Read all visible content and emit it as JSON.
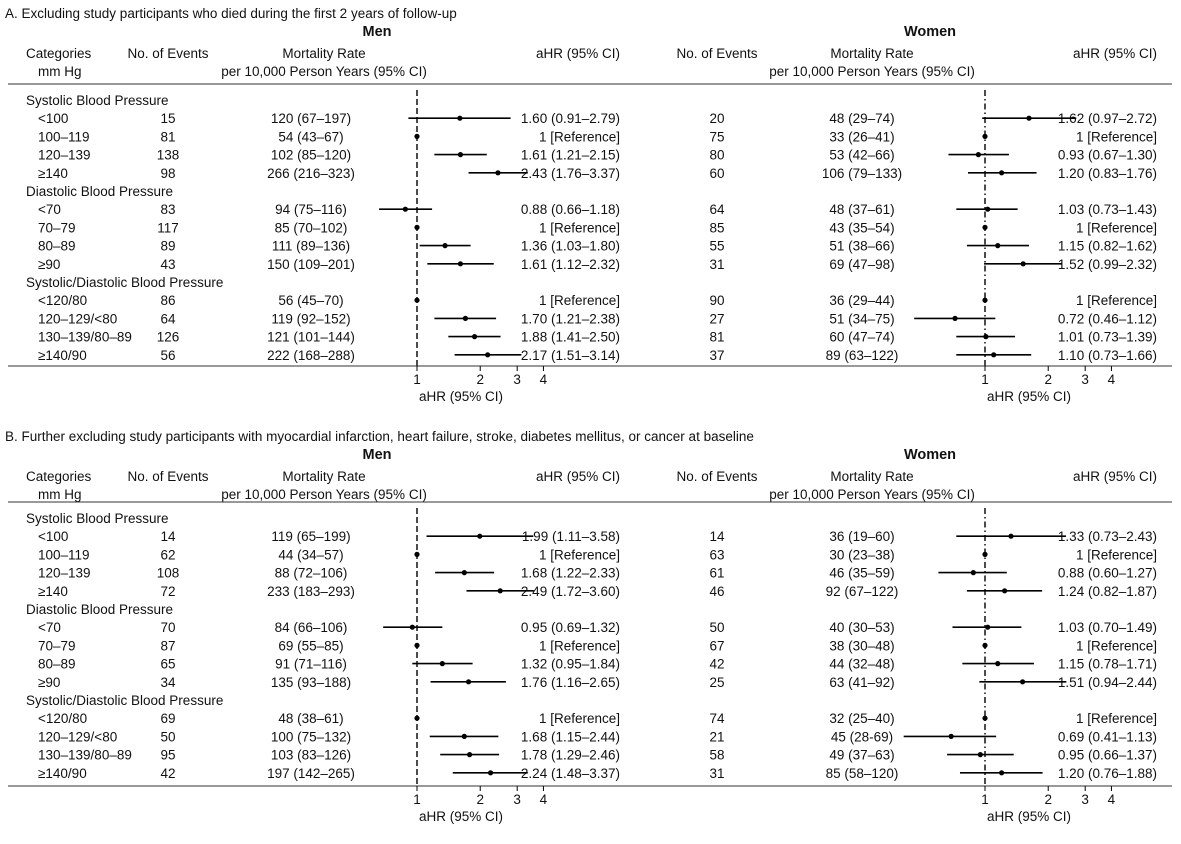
{
  "labels": {
    "categories_line1": "Categories",
    "categories_line2": "mm Hg",
    "events": "No. of Events",
    "rate_line1": "Mortality Rate",
    "rate_line2": "per 10,000 Person Years (95% CI)",
    "ahr_col": "aHR (95% CI)",
    "men": "Men",
    "women": "Women",
    "x_axis_label": "aHR (95% CI)",
    "x_ticks": [
      "1",
      "2",
      "3",
      "4"
    ]
  },
  "chart_data": [
    {
      "type": "forest",
      "panel_title": "A. Excluding study participants who died during the first 2 years of follow-up",
      "x_axis": {
        "label": "aHR (95% CI)",
        "scale": "log",
        "ticks": [
          1,
          2,
          3,
          4
        ],
        "reference_line": 1
      },
      "groups": [
        {
          "title": "Systolic Blood Pressure",
          "rows": [
            {
              "category": "<100",
              "men": {
                "events": "15",
                "rate": "120 (67–197)",
                "hr_text": "1.60 (0.91–2.79)",
                "hr": 1.6,
                "lo": 0.91,
                "hi": 2.79
              },
              "women": {
                "events": "20",
                "rate": "48 (29–74)",
                "hr_text": "1.62 (0.97–2.72)",
                "hr": 1.62,
                "lo": 0.97,
                "hi": 2.72
              }
            },
            {
              "category": "100–119",
              "men": {
                "events": "81",
                "rate": "54 (43–67)",
                "hr_text": "1 [Reference]",
                "hr": 1,
                "lo": 1,
                "hi": 1
              },
              "women": {
                "events": "75",
                "rate": "33 (26–41)",
                "hr_text": "1 [Reference]",
                "hr": 1,
                "lo": 1,
                "hi": 1
              }
            },
            {
              "category": "120–139",
              "men": {
                "events": "138",
                "rate": "102 (85–120)",
                "hr_text": "1.61 (1.21–2.15)",
                "hr": 1.61,
                "lo": 1.21,
                "hi": 2.15
              },
              "women": {
                "events": "80",
                "rate": "53 (42–66)",
                "hr_text": "0.93 (0.67–1.30)",
                "hr": 0.93,
                "lo": 0.67,
                "hi": 1.3
              }
            },
            {
              "category": "≥140",
              "men": {
                "events": "98",
                "rate": "266 (216–323)",
                "hr_text": "2.43 (1.76–3.37)",
                "hr": 2.43,
                "lo": 1.76,
                "hi": 3.37
              },
              "women": {
                "events": "60",
                "rate": "106 (79–133)",
                "hr_text": "1.20 (0.83–1.76)",
                "hr": 1.2,
                "lo": 0.83,
                "hi": 1.76
              }
            }
          ]
        },
        {
          "title": "Diastolic Blood Pressure",
          "rows": [
            {
              "category": "<70",
              "men": {
                "events": "83",
                "rate": "94 (75–116)",
                "hr_text": "0.88 (0.66–1.18)",
                "hr": 0.88,
                "lo": 0.66,
                "hi": 1.18
              },
              "women": {
                "events": "64",
                "rate": "48 (37–61)",
                "hr_text": "1.03 (0.73–1.43)",
                "hr": 1.03,
                "lo": 0.73,
                "hi": 1.43
              }
            },
            {
              "category": "70–79",
              "men": {
                "events": "117",
                "rate": "85 (70–102)",
                "hr_text": "1 [Reference]",
                "hr": 1,
                "lo": 1,
                "hi": 1
              },
              "women": {
                "events": "85",
                "rate": "43 (35–54)",
                "hr_text": "1 [Reference]",
                "hr": 1,
                "lo": 1,
                "hi": 1
              }
            },
            {
              "category": "80–89",
              "men": {
                "events": "89",
                "rate": "111 (89–136)",
                "hr_text": "1.36 (1.03–1.80)",
                "hr": 1.36,
                "lo": 1.03,
                "hi": 1.8
              },
              "women": {
                "events": "55",
                "rate": "51 (38–66)",
                "hr_text": "1.15 (0.82–1.62)",
                "hr": 1.15,
                "lo": 0.82,
                "hi": 1.62
              }
            },
            {
              "category": "≥90",
              "men": {
                "events": "43",
                "rate": "150 (109–201)",
                "hr_text": "1.61 (1.12–2.32)",
                "hr": 1.61,
                "lo": 1.12,
                "hi": 2.32
              },
              "women": {
                "events": "31",
                "rate": "69 (47–98)",
                "hr_text": "1.52 (0.99–2.32)",
                "hr": 1.52,
                "lo": 0.99,
                "hi": 2.32
              }
            }
          ]
        },
        {
          "title": "Systolic/Diastolic Blood Pressure",
          "rows": [
            {
              "category": "<120/80",
              "men": {
                "events": "86",
                "rate": "56 (45–70)",
                "hr_text": "1 [Reference]",
                "hr": 1,
                "lo": 1,
                "hi": 1
              },
              "women": {
                "events": "90",
                "rate": "36 (29–44)",
                "hr_text": "1 [Reference]",
                "hr": 1,
                "lo": 1,
                "hi": 1
              }
            },
            {
              "category": "120–129/<80",
              "men": {
                "events": "64",
                "rate": "119 (92–152)",
                "hr_text": "1.70 (1.21–2.38)",
                "hr": 1.7,
                "lo": 1.21,
                "hi": 2.38
              },
              "women": {
                "events": "27",
                "rate": "51 (34–75)",
                "hr_text": "0.72 (0.46–1.12)",
                "hr": 0.72,
                "lo": 0.46,
                "hi": 1.12
              }
            },
            {
              "category": "130–139/80–89",
              "men": {
                "events": "126",
                "rate": "121 (101–144)",
                "hr_text": "1.88 (1.41–2.50)",
                "hr": 1.88,
                "lo": 1.41,
                "hi": 2.5
              },
              "women": {
                "events": "81",
                "rate": "60 (47–74)",
                "hr_text": "1.01 (0.73–1.39)",
                "hr": 1.01,
                "lo": 0.73,
                "hi": 1.39
              }
            },
            {
              "category": "≥140/90",
              "men": {
                "events": "56",
                "rate": "222 (168–288)",
                "hr_text": "2.17 (1.51–3.14)",
                "hr": 2.17,
                "lo": 1.51,
                "hi": 3.14
              },
              "women": {
                "events": "37",
                "rate": "89 (63–122)",
                "hr_text": "1.10 (0.73–1.66)",
                "hr": 1.1,
                "lo": 0.73,
                "hi": 1.66
              }
            }
          ]
        }
      ]
    },
    {
      "type": "forest",
      "panel_title": "B. Further excluding study participants with myocardial infarction, heart failure, stroke, diabetes mellitus, or cancer at baseline",
      "x_axis": {
        "label": "aHR (95% CI)",
        "scale": "log",
        "ticks": [
          1,
          2,
          3,
          4
        ],
        "reference_line": 1
      },
      "groups": [
        {
          "title": "Systolic Blood Pressure",
          "rows": [
            {
              "category": "<100",
              "men": {
                "events": "14",
                "rate": "119 (65–199)",
                "hr_text": "1.99 (1.11–3.58)",
                "hr": 1.99,
                "lo": 1.11,
                "hi": 3.58
              },
              "women": {
                "events": "14",
                "rate": "36 (19–60)",
                "hr_text": "1.33 (0.73–2.43)",
                "hr": 1.33,
                "lo": 0.73,
                "hi": 2.43
              }
            },
            {
              "category": "100–119",
              "men": {
                "events": "62",
                "rate": "44 (34–57)",
                "hr_text": "1 [Reference]",
                "hr": 1,
                "lo": 1,
                "hi": 1
              },
              "women": {
                "events": "63",
                "rate": "30 (23–38)",
                "hr_text": "1 [Reference]",
                "hr": 1,
                "lo": 1,
                "hi": 1
              }
            },
            {
              "category": "120–139",
              "men": {
                "events": "108",
                "rate": "88 (72–106)",
                "hr_text": "1.68 (1.22–2.33)",
                "hr": 1.68,
                "lo": 1.22,
                "hi": 2.33
              },
              "women": {
                "events": "61",
                "rate": "46 (35–59)",
                "hr_text": "0.88 (0.60–1.27)",
                "hr": 0.88,
                "lo": 0.6,
                "hi": 1.27
              }
            },
            {
              "category": "≥140",
              "men": {
                "events": "72",
                "rate": "233 (183–293)",
                "hr_text": "2.49 (1.72–3.60)",
                "hr": 2.49,
                "lo": 1.72,
                "hi": 3.6
              },
              "women": {
                "events": "46",
                "rate": "92 (67–122)",
                "hr_text": "1.24 (0.82–1.87)",
                "hr": 1.24,
                "lo": 0.82,
                "hi": 1.87
              }
            }
          ]
        },
        {
          "title": "Diastolic Blood Pressure",
          "rows": [
            {
              "category": "<70",
              "men": {
                "events": "70",
                "rate": "84 (66–106)",
                "hr_text": "0.95 (0.69–1.32)",
                "hr": 0.95,
                "lo": 0.69,
                "hi": 1.32
              },
              "women": {
                "events": "50",
                "rate": "40 (30–53)",
                "hr_text": "1.03 (0.70–1.49)",
                "hr": 1.03,
                "lo": 0.7,
                "hi": 1.49
              }
            },
            {
              "category": "70–79",
              "men": {
                "events": "87",
                "rate": "69 (55–85)",
                "hr_text": "1 [Reference]",
                "hr": 1,
                "lo": 1,
                "hi": 1
              },
              "women": {
                "events": "67",
                "rate": "38 (30–48)",
                "hr_text": "1 [Reference]",
                "hr": 1,
                "lo": 1,
                "hi": 1
              }
            },
            {
              "category": "80–89",
              "men": {
                "events": "65",
                "rate": "91 (71–116)",
                "hr_text": "1.32 (0.95–1.84)",
                "hr": 1.32,
                "lo": 0.95,
                "hi": 1.84
              },
              "women": {
                "events": "42",
                "rate": "44 (32–48)",
                "hr_text": "1.15 (0.78–1.71)",
                "hr": 1.15,
                "lo": 0.78,
                "hi": 1.71
              }
            },
            {
              "category": "≥90",
              "men": {
                "events": "34",
                "rate": "135 (93–188)",
                "hr_text": "1.76 (1.16–2.65)",
                "hr": 1.76,
                "lo": 1.16,
                "hi": 2.65
              },
              "women": {
                "events": "25",
                "rate": "63 (41–92)",
                "hr_text": "1.51 (0.94–2.44)",
                "hr": 1.51,
                "lo": 0.94,
                "hi": 2.44
              }
            }
          ]
        },
        {
          "title": "Systolic/Diastolic Blood Pressure",
          "rows": [
            {
              "category": "<120/80",
              "men": {
                "events": "69",
                "rate": "48 (38–61)",
                "hr_text": "1 [Reference]",
                "hr": 1,
                "lo": 1,
                "hi": 1
              },
              "women": {
                "events": "74",
                "rate": "32 (25–40)",
                "hr_text": "1 [Reference]",
                "hr": 1,
                "lo": 1,
                "hi": 1
              }
            },
            {
              "category": "120–129/<80",
              "men": {
                "events": "50",
                "rate": "100 (75–132)",
                "hr_text": "1.68 (1.15–2.44)",
                "hr": 1.68,
                "lo": 1.15,
                "hi": 2.44
              },
              "women": {
                "events": "21",
                "rate": "45 (28-69)",
                "hr_text": "0.69 (0.41–1.13)",
                "hr": 0.69,
                "lo": 0.41,
                "hi": 1.13
              }
            },
            {
              "category": "130–139/80–89",
              "men": {
                "events": "95",
                "rate": "103 (83–126)",
                "hr_text": "1.78 (1.29–2.46)",
                "hr": 1.78,
                "lo": 1.29,
                "hi": 2.46
              },
              "women": {
                "events": "58",
                "rate": "49 (37–63)",
                "hr_text": "0.95 (0.66–1.37)",
                "hr": 0.95,
                "lo": 0.66,
                "hi": 1.37
              }
            },
            {
              "category": "≥140/90",
              "men": {
                "events": "42",
                "rate": "197 (142–265)",
                "hr_text": "2.24 (1.48–3.37)",
                "hr": 2.24,
                "lo": 1.48,
                "hi": 3.37
              },
              "women": {
                "events": "31",
                "rate": "85 (58–120)",
                "hr_text": "1.20 (0.76–1.88)",
                "hr": 1.2,
                "lo": 0.76,
                "hi": 1.88
              }
            }
          ]
        }
      ]
    }
  ]
}
